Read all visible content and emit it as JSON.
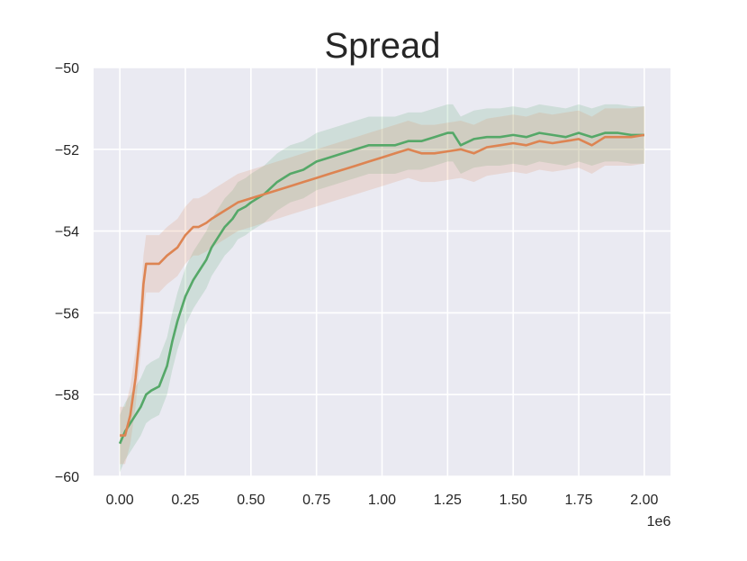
{
  "chart_data": {
    "type": "line",
    "title": "Spread",
    "xlabel": "",
    "ylabel": "",
    "x_offset_label": "1e6",
    "xlim": [
      -0.1,
      2.1
    ],
    "ylim": [
      -60,
      -50
    ],
    "x_ticks": [
      0.0,
      0.25,
      0.5,
      0.75,
      1.0,
      1.25,
      1.5,
      1.75,
      2.0
    ],
    "x_tick_labels": [
      "0.00",
      "0.25",
      "0.50",
      "0.75",
      "1.00",
      "1.25",
      "1.50",
      "1.75",
      "2.00"
    ],
    "y_ticks": [
      -60,
      -58,
      -56,
      -54,
      -52,
      -50
    ],
    "y_tick_labels": [
      "−60",
      "−58",
      "−56",
      "−54",
      "−52",
      "−50"
    ],
    "grid": true,
    "background": "#eaeaf2",
    "series": [
      {
        "color": "#55a868",
        "x": [
          0.0,
          0.02,
          0.05,
          0.08,
          0.1,
          0.12,
          0.15,
          0.18,
          0.2,
          0.22,
          0.25,
          0.28,
          0.3,
          0.33,
          0.35,
          0.38,
          0.4,
          0.43,
          0.45,
          0.48,
          0.5,
          0.55,
          0.6,
          0.65,
          0.7,
          0.75,
          0.8,
          0.85,
          0.9,
          0.95,
          1.0,
          1.05,
          1.1,
          1.15,
          1.2,
          1.25,
          1.27,
          1.3,
          1.35,
          1.4,
          1.45,
          1.5,
          1.55,
          1.6,
          1.65,
          1.7,
          1.75,
          1.8,
          1.85,
          1.9,
          1.95,
          2.0
        ],
        "y": [
          -59.2,
          -58.9,
          -58.6,
          -58.3,
          -58.0,
          -57.9,
          -57.8,
          -57.3,
          -56.7,
          -56.2,
          -55.6,
          -55.2,
          -55.0,
          -54.7,
          -54.4,
          -54.1,
          -53.9,
          -53.7,
          -53.5,
          -53.4,
          -53.3,
          -53.1,
          -52.8,
          -52.6,
          -52.5,
          -52.3,
          -52.2,
          -52.1,
          -52.0,
          -51.9,
          -51.9,
          -51.9,
          -51.8,
          -51.8,
          -51.7,
          -51.6,
          -51.6,
          -51.9,
          -51.75,
          -51.7,
          -51.7,
          -51.65,
          -51.7,
          -51.6,
          -51.65,
          -51.7,
          -51.6,
          -51.7,
          -51.6,
          -51.6,
          -51.65,
          -51.65
        ],
        "band": 0.7
      },
      {
        "color": "#dd8452",
        "x": [
          0.0,
          0.02,
          0.04,
          0.06,
          0.08,
          0.09,
          0.1,
          0.12,
          0.15,
          0.18,
          0.2,
          0.22,
          0.25,
          0.28,
          0.3,
          0.33,
          0.35,
          0.4,
          0.45,
          0.5,
          0.55,
          0.6,
          0.65,
          0.7,
          0.75,
          0.8,
          0.85,
          0.9,
          0.95,
          1.0,
          1.05,
          1.1,
          1.15,
          1.2,
          1.25,
          1.3,
          1.35,
          1.4,
          1.45,
          1.5,
          1.55,
          1.6,
          1.65,
          1.7,
          1.75,
          1.8,
          1.85,
          1.9,
          1.95,
          2.0
        ],
        "y": [
          -59.0,
          -59.0,
          -58.5,
          -57.6,
          -56.3,
          -55.3,
          -54.8,
          -54.8,
          -54.8,
          -54.6,
          -54.5,
          -54.4,
          -54.1,
          -53.9,
          -53.9,
          -53.8,
          -53.7,
          -53.5,
          -53.3,
          -53.2,
          -53.1,
          -53.0,
          -52.9,
          -52.8,
          -52.7,
          -52.6,
          -52.5,
          -52.4,
          -52.3,
          -52.2,
          -52.1,
          -52.0,
          -52.1,
          -52.1,
          -52.05,
          -52.0,
          -52.1,
          -51.95,
          -51.9,
          -51.85,
          -51.9,
          -51.8,
          -51.85,
          -51.8,
          -51.75,
          -51.9,
          -51.7,
          -51.7,
          -51.7,
          -51.65
        ],
        "band": 0.7
      }
    ]
  }
}
